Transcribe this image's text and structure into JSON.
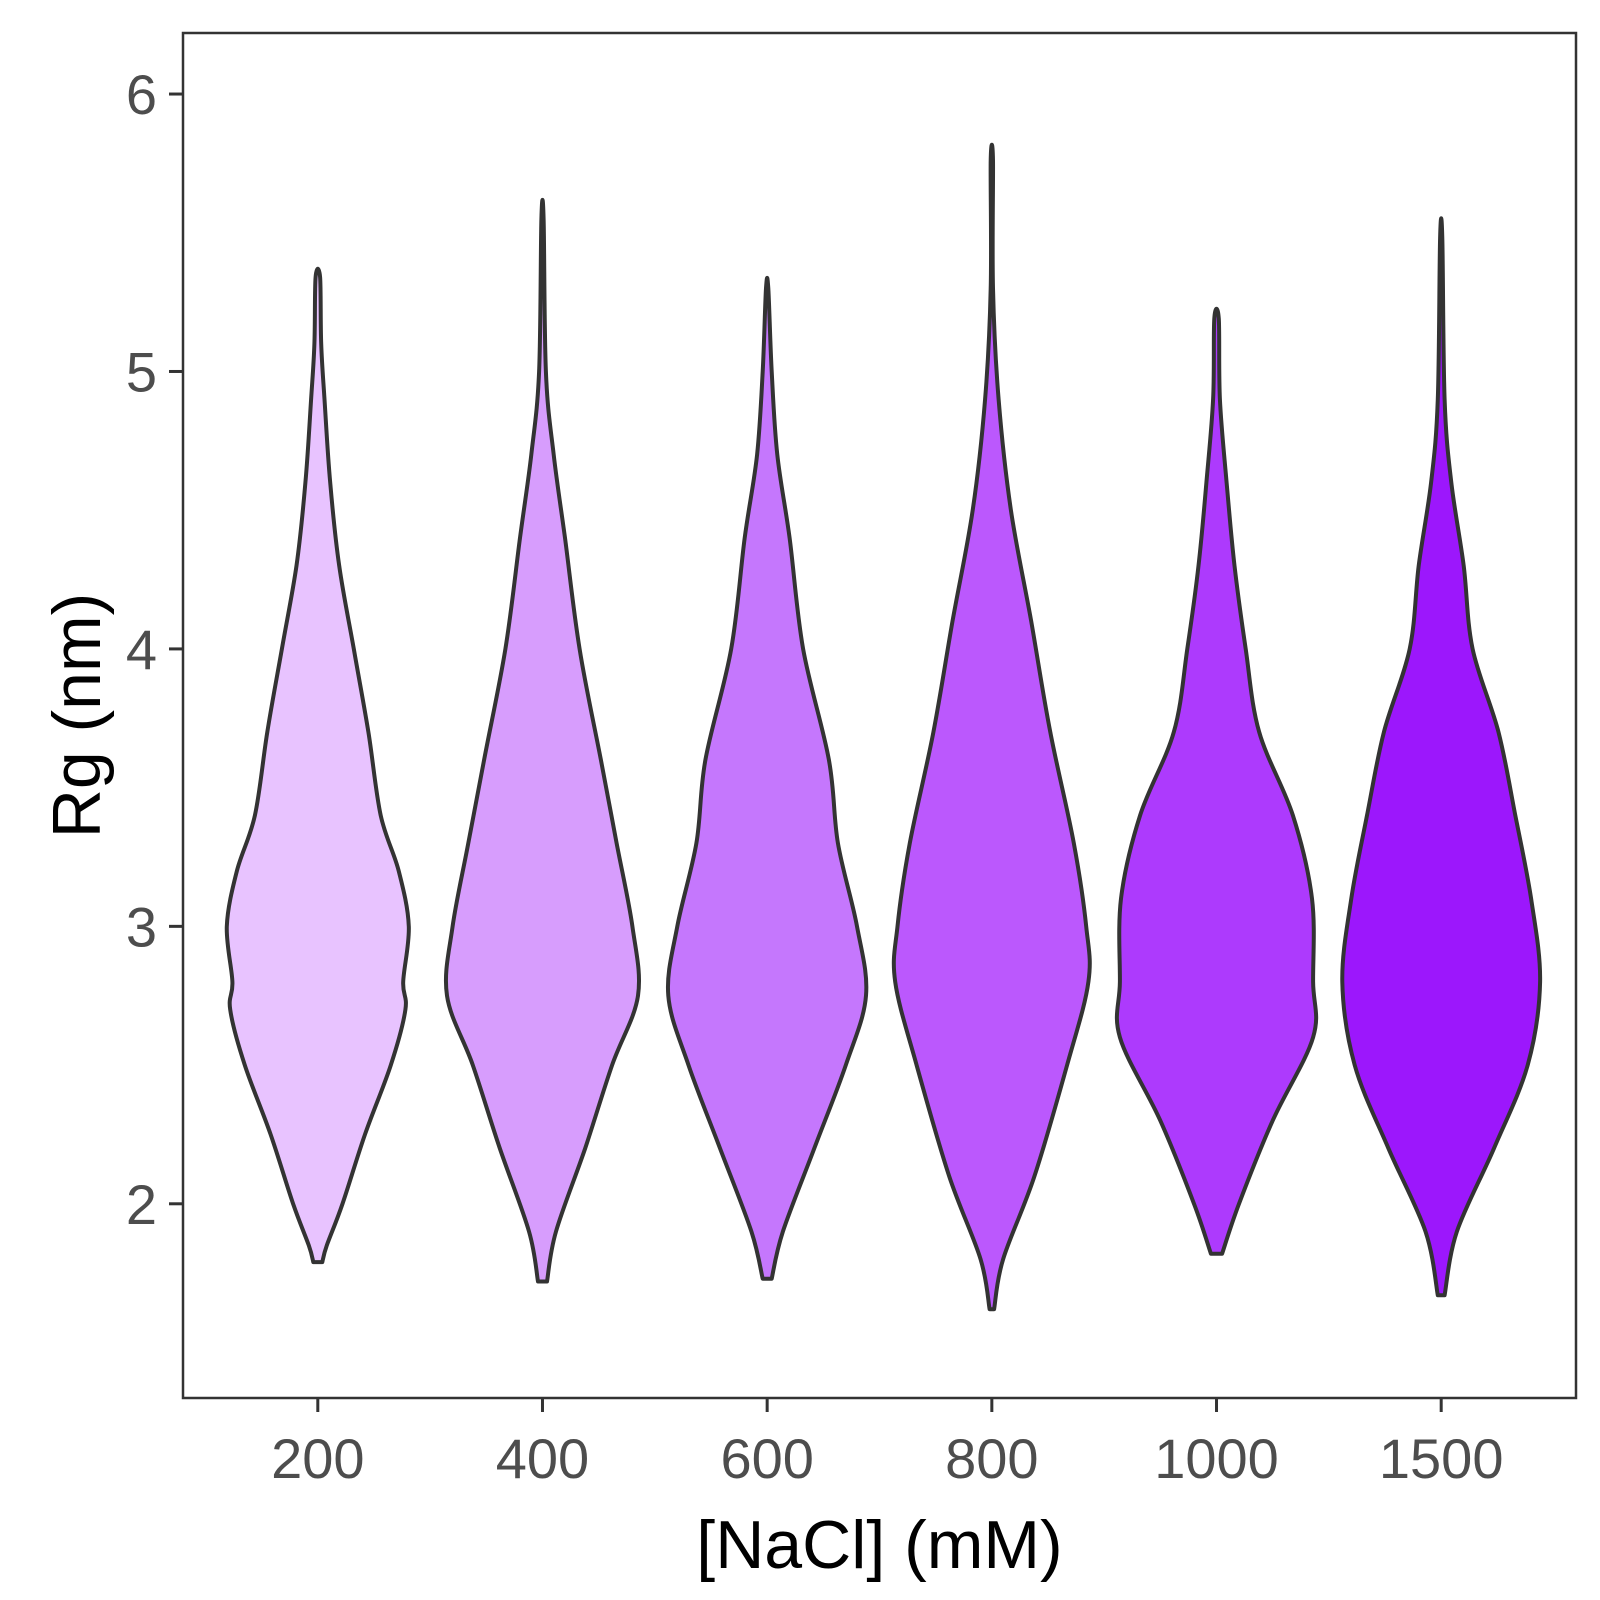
{
  "chart_data": {
    "type": "violin",
    "title": "",
    "xlabel": "[NaCl] (mM)",
    "ylabel": "Rg (nm)",
    "ylim": [
      1.3,
      6.22
    ],
    "yticks": [
      2,
      3,
      4,
      5,
      6
    ],
    "grid": false,
    "legend": "none",
    "categories": [
      "200",
      "400",
      "600",
      "800",
      "1000",
      "1500"
    ],
    "colors": [
      "#e8c3ff",
      "#d79dfd",
      "#c577fd",
      "#bb58fd",
      "#ad3afd",
      "#9c17fc"
    ],
    "series": [
      {
        "category": "200",
        "min": 1.79,
        "max": 5.34,
        "profile": [
          [
            1.79,
            0.04
          ],
          [
            1.85,
            0.08
          ],
          [
            2.0,
            0.22
          ],
          [
            2.25,
            0.42
          ],
          [
            2.5,
            0.65
          ],
          [
            2.7,
            0.78
          ],
          [
            2.8,
            0.76
          ],
          [
            3.0,
            0.81
          ],
          [
            3.2,
            0.72
          ],
          [
            3.4,
            0.56
          ],
          [
            3.7,
            0.45
          ],
          [
            4.0,
            0.32
          ],
          [
            4.3,
            0.19
          ],
          [
            4.6,
            0.11
          ],
          [
            4.9,
            0.06
          ],
          [
            5.1,
            0.03
          ],
          [
            5.34,
            0.02
          ]
        ]
      },
      {
        "category": "400",
        "min": 1.72,
        "max": 5.55,
        "profile": [
          [
            1.72,
            0.04
          ],
          [
            1.9,
            0.12
          ],
          [
            2.2,
            0.38
          ],
          [
            2.5,
            0.62
          ],
          [
            2.75,
            0.85
          ],
          [
            3.0,
            0.8
          ],
          [
            3.3,
            0.66
          ],
          [
            3.6,
            0.52
          ],
          [
            4.0,
            0.33
          ],
          [
            4.4,
            0.2
          ],
          [
            4.7,
            0.1
          ],
          [
            5.0,
            0.03
          ],
          [
            5.55,
            0.01
          ]
        ]
      },
      {
        "category": "600",
        "min": 1.73,
        "max": 5.3,
        "profile": [
          [
            1.73,
            0.04
          ],
          [
            1.9,
            0.14
          ],
          [
            2.2,
            0.42
          ],
          [
            2.5,
            0.7
          ],
          [
            2.75,
            0.88
          ],
          [
            3.0,
            0.8
          ],
          [
            3.3,
            0.63
          ],
          [
            3.6,
            0.55
          ],
          [
            4.0,
            0.32
          ],
          [
            4.4,
            0.2
          ],
          [
            4.7,
            0.09
          ],
          [
            5.0,
            0.04
          ],
          [
            5.3,
            0.01
          ]
        ]
      },
      {
        "category": "800",
        "min": 1.62,
        "max": 5.76,
        "profile": [
          [
            1.62,
            0.02
          ],
          [
            1.8,
            0.1
          ],
          [
            2.1,
            0.38
          ],
          [
            2.5,
            0.67
          ],
          [
            2.8,
            0.86
          ],
          [
            3.0,
            0.84
          ],
          [
            3.3,
            0.73
          ],
          [
            3.7,
            0.52
          ],
          [
            4.1,
            0.35
          ],
          [
            4.5,
            0.17
          ],
          [
            4.9,
            0.06
          ],
          [
            5.3,
            0.01
          ],
          [
            5.76,
            0.01
          ]
        ]
      },
      {
        "category": "1000",
        "min": 1.82,
        "max": 5.19,
        "profile": [
          [
            1.82,
            0.05
          ],
          [
            2.0,
            0.2
          ],
          [
            2.3,
            0.5
          ],
          [
            2.6,
            0.86
          ],
          [
            2.8,
            0.86
          ],
          [
            3.1,
            0.85
          ],
          [
            3.4,
            0.68
          ],
          [
            3.7,
            0.38
          ],
          [
            4.0,
            0.26
          ],
          [
            4.3,
            0.16
          ],
          [
            4.6,
            0.09
          ],
          [
            4.9,
            0.03
          ],
          [
            5.19,
            0.02
          ]
        ]
      },
      {
        "category": "1500",
        "min": 1.67,
        "max": 5.48,
        "profile": [
          [
            1.67,
            0.03
          ],
          [
            1.9,
            0.14
          ],
          [
            2.2,
            0.47
          ],
          [
            2.5,
            0.77
          ],
          [
            2.8,
            0.88
          ],
          [
            3.1,
            0.8
          ],
          [
            3.4,
            0.66
          ],
          [
            3.7,
            0.51
          ],
          [
            4.0,
            0.28
          ],
          [
            4.3,
            0.2
          ],
          [
            4.6,
            0.09
          ],
          [
            4.9,
            0.03
          ],
          [
            5.48,
            0.01
          ]
        ]
      }
    ]
  }
}
